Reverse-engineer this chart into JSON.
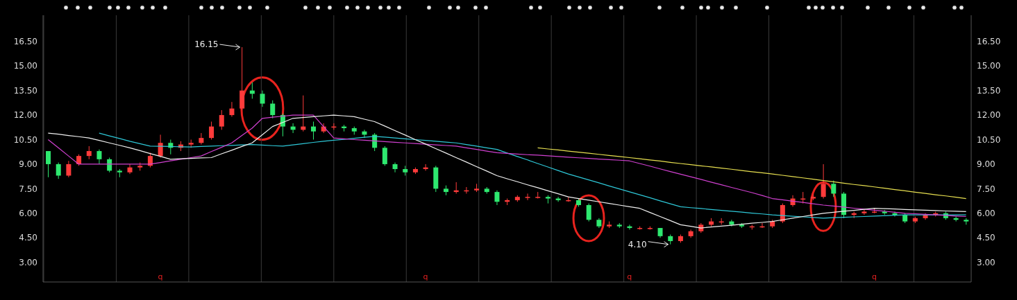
{
  "chart_data": {
    "type": "candlestick",
    "categories": [
      null,
      null,
      null,
      null,
      null,
      null,
      null,
      null,
      null,
      null,
      null,
      null,
      null,
      null,
      null,
      null,
      null,
      null,
      null,
      null,
      null,
      null,
      null,
      null,
      null,
      null,
      null,
      null,
      null,
      null,
      null,
      null,
      null,
      null,
      null,
      null,
      null,
      null,
      null,
      null,
      null,
      null,
      null,
      null,
      null,
      null,
      null,
      null,
      null,
      null,
      null,
      null,
      null,
      null,
      null,
      null,
      null,
      null,
      null,
      null,
      null,
      null,
      null,
      null,
      null,
      null,
      null,
      null,
      null,
      null,
      null,
      null,
      null,
      null,
      null,
      null,
      null,
      null,
      null,
      null,
      null,
      null,
      null,
      null,
      null,
      null,
      null,
      null,
      null,
      null,
      null
    ],
    "ohlc": [
      [
        9.8,
        9.8,
        8.2,
        9.0
      ],
      [
        9.0,
        9.1,
        8.1,
        8.3
      ],
      [
        8.3,
        9.2,
        8.2,
        9.0
      ],
      [
        9.0,
        9.6,
        8.9,
        9.5
      ],
      [
        9.5,
        10.1,
        9.3,
        9.8
      ],
      [
        9.8,
        9.9,
        9.0,
        9.3
      ],
      [
        9.3,
        9.4,
        8.5,
        8.6
      ],
      [
        8.6,
        8.7,
        8.2,
        8.5
      ],
      [
        8.5,
        9.0,
        8.4,
        8.8
      ],
      [
        8.8,
        9.1,
        8.6,
        8.9
      ],
      [
        8.9,
        9.7,
        8.8,
        9.5
      ],
      [
        9.5,
        10.8,
        9.4,
        10.3
      ],
      [
        10.3,
        10.5,
        9.6,
        10.0
      ],
      [
        10.0,
        10.4,
        9.8,
        10.2
      ],
      [
        10.2,
        10.5,
        10.0,
        10.3
      ],
      [
        10.3,
        10.9,
        10.2,
        10.6
      ],
      [
        10.6,
        11.6,
        10.5,
        11.3
      ],
      [
        11.3,
        12.3,
        11.1,
        12.0
      ],
      [
        12.0,
        12.8,
        11.9,
        12.4
      ],
      [
        12.4,
        16.15,
        12.3,
        13.5
      ],
      [
        13.5,
        14.0,
        13.0,
        13.3
      ],
      [
        13.3,
        13.5,
        12.5,
        12.7
      ],
      [
        12.7,
        12.9,
        11.8,
        12.0
      ],
      [
        12.0,
        12.1,
        10.7,
        11.3
      ],
      [
        11.3,
        11.5,
        10.9,
        11.1
      ],
      [
        11.1,
        13.2,
        11.0,
        11.3
      ],
      [
        11.3,
        11.6,
        10.5,
        11.0
      ],
      [
        11.0,
        11.5,
        10.9,
        11.3
      ],
      [
        11.3,
        11.5,
        11.1,
        11.3
      ],
      [
        11.3,
        11.4,
        11.0,
        11.2
      ],
      [
        11.2,
        11.3,
        10.8,
        11.0
      ],
      [
        11.0,
        11.1,
        10.6,
        10.8
      ],
      [
        10.8,
        10.9,
        9.8,
        10.0
      ],
      [
        10.0,
        10.1,
        8.9,
        9.0
      ],
      [
        9.0,
        9.1,
        8.5,
        8.7
      ],
      [
        8.7,
        8.9,
        8.3,
        8.5
      ],
      [
        8.5,
        8.8,
        8.4,
        8.7
      ],
      [
        8.7,
        9.0,
        8.6,
        8.8
      ],
      [
        8.8,
        8.9,
        7.3,
        7.5
      ],
      [
        7.5,
        7.7,
        7.1,
        7.3
      ],
      [
        7.3,
        7.9,
        7.2,
        7.4
      ],
      [
        7.4,
        7.6,
        7.2,
        7.4
      ],
      [
        7.4,
        7.8,
        7.3,
        7.5
      ],
      [
        7.5,
        7.6,
        7.2,
        7.3
      ],
      [
        7.3,
        7.4,
        6.5,
        6.7
      ],
      [
        6.7,
        6.9,
        6.5,
        6.8
      ],
      [
        6.8,
        7.1,
        6.7,
        7.0
      ],
      [
        7.0,
        7.2,
        6.8,
        7.0
      ],
      [
        7.0,
        7.3,
        6.9,
        7.0
      ],
      [
        7.0,
        7.1,
        6.6,
        6.9
      ],
      [
        6.9,
        7.0,
        6.7,
        6.8
      ],
      [
        6.8,
        7.0,
        6.7,
        6.8
      ],
      [
        6.8,
        6.9,
        6.4,
        6.5
      ],
      [
        6.5,
        6.6,
        5.5,
        5.6
      ],
      [
        5.6,
        5.7,
        5.1,
        5.2
      ],
      [
        5.2,
        5.5,
        5.1,
        5.3
      ],
      [
        5.3,
        5.4,
        5.1,
        5.2
      ],
      [
        5.2,
        5.3,
        5.0,
        5.1
      ],
      [
        5.1,
        5.2,
        5.0,
        5.1
      ],
      [
        5.1,
        5.2,
        5.0,
        5.1
      ],
      [
        5.1,
        5.1,
        4.5,
        4.6
      ],
      [
        4.6,
        4.7,
        4.1,
        4.3
      ],
      [
        4.3,
        4.7,
        4.2,
        4.6
      ],
      [
        4.6,
        5.0,
        4.5,
        4.9
      ],
      [
        4.9,
        5.4,
        4.8,
        5.3
      ],
      [
        5.3,
        5.7,
        5.2,
        5.5
      ],
      [
        5.5,
        5.7,
        5.3,
        5.5
      ],
      [
        5.5,
        5.6,
        5.2,
        5.3
      ],
      [
        5.3,
        5.4,
        5.1,
        5.2
      ],
      [
        5.2,
        5.3,
        5.0,
        5.2
      ],
      [
        5.2,
        5.4,
        5.1,
        5.2
      ],
      [
        5.2,
        5.6,
        5.1,
        5.5
      ],
      [
        5.5,
        6.6,
        5.4,
        6.5
      ],
      [
        6.5,
        7.1,
        6.4,
        6.9
      ],
      [
        6.9,
        7.3,
        6.6,
        6.9
      ],
      [
        6.9,
        7.2,
        6.8,
        7.0
      ],
      [
        7.0,
        9.0,
        6.9,
        7.8
      ],
      [
        7.8,
        8.0,
        7.0,
        7.2
      ],
      [
        7.2,
        7.3,
        5.7,
        5.9
      ],
      [
        5.9,
        6.1,
        5.7,
        6.0
      ],
      [
        6.0,
        6.2,
        5.9,
        6.1
      ],
      [
        6.1,
        6.3,
        6.0,
        6.1
      ],
      [
        6.1,
        6.2,
        5.9,
        6.0
      ],
      [
        6.0,
        6.1,
        5.8,
        5.9
      ],
      [
        5.9,
        6.0,
        5.4,
        5.5
      ],
      [
        5.5,
        5.8,
        5.4,
        5.7
      ],
      [
        5.7,
        6.0,
        5.6,
        5.9
      ],
      [
        5.9,
        6.1,
        5.8,
        6.0
      ],
      [
        6.0,
        6.1,
        5.6,
        5.7
      ],
      [
        5.7,
        5.8,
        5.5,
        5.6
      ],
      [
        5.6,
        5.7,
        5.3,
        5.5
      ]
    ],
    "colors": [
      "#2ee86f",
      "#2ee86f",
      "#ff3b3b",
      "#ff3b3b",
      "#ff3b3b",
      "#2ee86f",
      "#2ee86f",
      "#2ee86f",
      "#ff3b3b",
      "#ff3b3b",
      "#ff3b3b",
      "#ff3b3b",
      "#2ee86f",
      "#ff3b3b",
      "#ff3b3b",
      "#ff3b3b",
      "#ff3b3b",
      "#ff3b3b",
      "#ff3b3b",
      "#ff3b3b",
      "#2ee86f",
      "#2ee86f",
      "#2ee86f",
      "#2ee86f",
      "#2ee86f",
      "#ff3b3b",
      "#2ee86f",
      "#ff3b3b",
      "#ff3b3b",
      "#2ee86f",
      "#2ee86f",
      "#2ee86f",
      "#2ee86f",
      "#2ee86f",
      "#2ee86f",
      "#2ee86f",
      "#ff3b3b",
      "#ff3b3b",
      "#2ee86f",
      "#2ee86f",
      "#ff3b3b",
      "#ff3b3b",
      "#ff3b3b",
      "#2ee86f",
      "#2ee86f",
      "#ff3b3b",
      "#ff3b3b",
      "#ff3b3b",
      "#ff3b3b",
      "#2ee86f",
      "#2ee86f",
      "#ff3b3b",
      "#2ee86f",
      "#2ee86f",
      "#2ee86f",
      "#ff3b3b",
      "#2ee86f",
      "#2ee86f",
      "#ff3b3b",
      "#ff3b3b",
      "#2ee86f",
      "#2ee86f",
      "#ff3b3b",
      "#ff3b3b",
      "#ff3b3b",
      "#ff3b3b",
      "#ff3b3b",
      "#2ee86f",
      "#2ee86f",
      "#ff3b3b",
      "#ff3b3b",
      "#ff3b3b",
      "#ff3b3b",
      "#ff3b3b",
      "#ff3b3b",
      "#ff3b3b",
      "#ff3b3b",
      "#2ee86f",
      "#2ee86f",
      "#ff3b3b",
      "#ff3b3b",
      "#ff3b3b",
      "#2ee86f",
      "#2ee86f",
      "#2ee86f",
      "#ff3b3b",
      "#ff3b3b",
      "#ff3b3b",
      "#2ee86f",
      "#2ee86f",
      "#2ee86f"
    ],
    "series": [
      {
        "type": "line",
        "color": "#2ec8d8",
        "values": [
          null,
          null,
          null,
          null,
          null,
          10.9,
          10.73,
          10.57,
          10.4,
          10.25,
          10.1,
          10.09,
          10.08,
          10.06,
          10.05,
          10.08,
          10.1,
          10.13,
          10.15,
          10.18,
          10.2,
          10.17,
          10.13,
          10.1,
          10.18,
          10.25,
          10.33,
          10.4,
          10.46,
          10.52,
          10.58,
          10.64,
          10.7,
          10.65,
          10.6,
          10.55,
          10.5,
          10.45,
          10.4,
          10.35,
          10.3,
          10.2,
          10.1,
          10.0,
          9.9,
          9.68,
          9.47,
          9.26,
          9.04,
          8.83,
          8.61,
          8.4,
          8.22,
          8.04,
          7.86,
          7.67,
          7.49,
          7.31,
          7.13,
          6.95,
          6.76,
          6.58,
          6.4,
          6.34,
          6.29,
          6.23,
          6.18,
          6.12,
          6.07,
          6.01,
          5.96,
          5.9,
          5.86,
          5.82,
          5.78,
          5.74,
          5.7,
          5.73,
          5.75,
          5.78,
          5.8,
          5.83,
          5.85,
          5.88,
          5.9,
          5.9,
          5.9,
          5.9,
          5.9,
          5.9,
          5.9
        ]
      },
      {
        "type": "line",
        "color": "#d040d0",
        "values": [
          10.5,
          10.0,
          9.5,
          9.0,
          9.0,
          9.0,
          9.0,
          9.0,
          9.0,
          9.0,
          9.0,
          9.1,
          9.2,
          9.3,
          9.4,
          9.5,
          9.77,
          10.03,
          10.3,
          10.75,
          11.2,
          11.8,
          11.87,
          11.93,
          12.0,
          12.0,
          12.0,
          11.3,
          10.6,
          10.55,
          10.5,
          10.46,
          10.42,
          10.38,
          10.34,
          10.3,
          10.26,
          10.22,
          10.18,
          10.14,
          10.1,
          10.0,
          9.9,
          9.8,
          9.7,
          9.66,
          9.62,
          9.58,
          9.55,
          9.51,
          9.47,
          9.43,
          9.39,
          9.35,
          9.31,
          9.28,
          9.24,
          9.2,
          9.04,
          8.88,
          8.71,
          8.55,
          8.39,
          8.23,
          8.07,
          7.9,
          7.74,
          7.58,
          7.42,
          7.26,
          7.09,
          6.9,
          6.82,
          6.74,
          6.66,
          6.58,
          6.5,
          6.44,
          6.38,
          6.31,
          6.25,
          6.19,
          6.13,
          6.06,
          6.0,
          5.97,
          5.93,
          5.9,
          5.87,
          5.83,
          5.8
        ]
      },
      {
        "type": "line",
        "color": "#f0f0f0",
        "values": [
          10.9,
          10.83,
          10.75,
          10.68,
          10.6,
          10.45,
          10.3,
          10.15,
          10.0,
          9.83,
          9.65,
          9.48,
          9.3,
          9.33,
          9.35,
          9.38,
          9.4,
          9.63,
          9.85,
          10.08,
          10.3,
          10.8,
          11.3,
          11.55,
          11.8,
          11.85,
          11.9,
          11.95,
          12.0,
          11.95,
          11.9,
          11.75,
          11.6,
          11.33,
          11.05,
          10.78,
          10.5,
          10.23,
          9.95,
          9.68,
          9.4,
          9.13,
          8.85,
          8.58,
          8.3,
          8.11,
          7.93,
          7.74,
          7.56,
          7.37,
          7.19,
          7.0,
          6.9,
          6.8,
          6.7,
          6.6,
          6.5,
          6.4,
          6.3,
          6.05,
          5.8,
          5.55,
          5.3,
          5.2,
          5.1,
          5.16,
          5.21,
          5.27,
          5.33,
          5.39,
          5.44,
          5.5,
          5.6,
          5.7,
          5.8,
          5.9,
          6.0,
          6.06,
          6.12,
          6.18,
          6.24,
          6.3,
          6.28,
          6.26,
          6.23,
          6.21,
          6.19,
          6.17,
          6.14,
          6.12,
          6.1
        ]
      },
      {
        "type": "line",
        "color": "#e8e050",
        "values": [
          null,
          null,
          null,
          null,
          null,
          null,
          null,
          null,
          null,
          null,
          null,
          null,
          null,
          null,
          null,
          null,
          null,
          null,
          null,
          null,
          null,
          null,
          null,
          null,
          null,
          null,
          null,
          null,
          null,
          null,
          null,
          null,
          null,
          null,
          null,
          null,
          null,
          null,
          null,
          null,
          null,
          null,
          null,
          null,
          null,
          null,
          null,
          null,
          10.0,
          9.93,
          9.87,
          9.8,
          9.73,
          9.67,
          9.6,
          9.53,
          9.47,
          9.4,
          9.33,
          9.26,
          9.19,
          9.11,
          9.04,
          8.97,
          8.9,
          8.83,
          8.76,
          8.69,
          8.61,
          8.54,
          8.47,
          8.4,
          8.32,
          8.24,
          8.16,
          8.08,
          8.0,
          7.92,
          7.84,
          7.76,
          7.69,
          7.61,
          7.53,
          7.45,
          7.37,
          7.29,
          7.21,
          7.13,
          7.06,
          6.98,
          6.9
        ]
      }
    ],
    "ylim": [
      1.8,
      18.1
    ],
    "yticks": [
      {
        "value": 3,
        "label": "3.00"
      },
      {
        "value": 4.5,
        "label": "4.50"
      },
      {
        "value": 6,
        "label": "6.00"
      },
      {
        "value": 7.5,
        "label": "7.50"
      },
      {
        "value": 9,
        "label": "9.00"
      },
      {
        "value": 10.5,
        "label": "10.50"
      },
      {
        "value": 12,
        "label": "12.00"
      },
      {
        "value": 13.5,
        "label": "13.50"
      },
      {
        "value": 15,
        "label": "15.00"
      },
      {
        "value": 16.5,
        "label": "16.50"
      }
    ],
    "y2lim": [
      1.8,
      18.1
    ],
    "y2ticks": [
      {
        "value": 3,
        "label": "3.00"
      },
      {
        "value": 4.5,
        "label": "4.50"
      },
      {
        "value": 6,
        "label": "6.00"
      },
      {
        "value": 7.5,
        "label": "7.50"
      },
      {
        "value": 9,
        "label": "9.00"
      },
      {
        "value": 10.5,
        "label": "10.50"
      },
      {
        "value": 12,
        "label": "12.00"
      },
      {
        "value": 13.5,
        "label": "13.50"
      },
      {
        "value": 15,
        "label": "15.00"
      },
      {
        "value": 16.5,
        "label": "16.50"
      }
    ],
    "grid": true,
    "tick_labels": "y",
    "annotations": [
      "16.15",
      "4.10",
      "q",
      "q",
      "q",
      "q"
    ]
  }
}
